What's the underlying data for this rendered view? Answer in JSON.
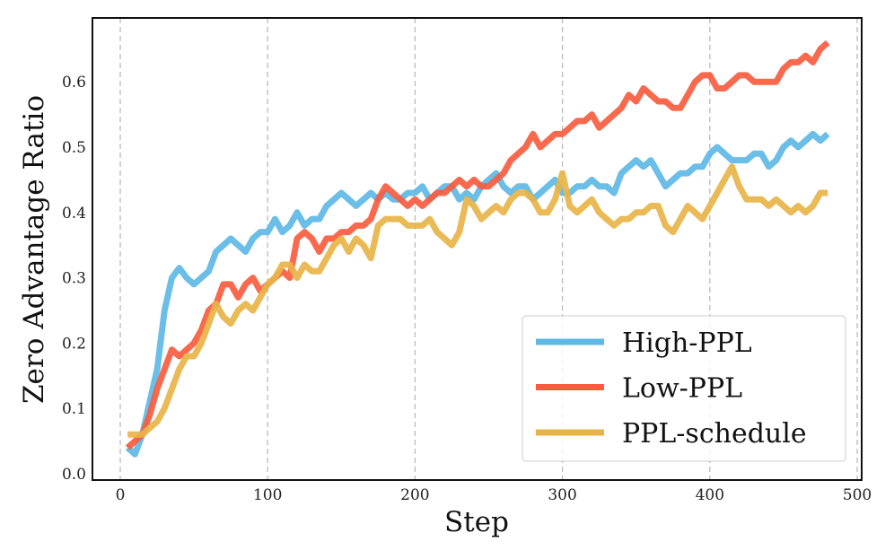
{
  "chart_data": {
    "type": "line",
    "title": "",
    "xlabel": "Step",
    "ylabel": "Zero Advantage Ratio",
    "xlim": [
      -20,
      505
    ],
    "ylim": [
      -0.01,
      0.69
    ],
    "xticks": [
      0,
      100,
      200,
      300,
      400,
      500
    ],
    "xtick_labels": [
      "0",
      "100",
      "200",
      "300",
      "400",
      "500"
    ],
    "yticks": [
      0.0,
      0.1,
      0.2,
      0.3,
      0.4,
      0.5,
      0.6
    ],
    "ytick_labels": [
      "0.0",
      "0.1",
      "0.2",
      "0.3",
      "0.4",
      "0.5",
      "0.6"
    ],
    "grid": "vertical dashed",
    "legend_position": "bottom-right",
    "x": [
      5,
      10,
      15,
      20,
      25,
      30,
      35,
      40,
      45,
      50,
      55,
      60,
      65,
      70,
      75,
      80,
      85,
      90,
      95,
      100,
      105,
      110,
      115,
      120,
      125,
      130,
      135,
      140,
      145,
      150,
      155,
      160,
      165,
      170,
      175,
      180,
      185,
      190,
      195,
      200,
      205,
      210,
      215,
      220,
      225,
      230,
      235,
      240,
      245,
      250,
      255,
      260,
      265,
      270,
      275,
      280,
      285,
      290,
      295,
      300,
      305,
      310,
      315,
      320,
      325,
      330,
      335,
      340,
      345,
      350,
      355,
      360,
      365,
      370,
      375,
      380,
      385,
      390,
      395,
      400,
      405,
      410,
      415,
      420,
      425,
      430,
      435,
      440,
      445,
      450,
      455,
      460,
      465,
      470,
      475,
      480
    ],
    "series": [
      {
        "name": "High-PPL",
        "color": "#5DB8E6",
        "values": [
          0.04,
          0.03,
          0.06,
          0.11,
          0.16,
          0.25,
          0.3,
          0.315,
          0.3,
          0.29,
          0.3,
          0.31,
          0.34,
          0.35,
          0.36,
          0.35,
          0.34,
          0.36,
          0.37,
          0.37,
          0.39,
          0.37,
          0.38,
          0.4,
          0.38,
          0.39,
          0.39,
          0.41,
          0.42,
          0.43,
          0.42,
          0.41,
          0.42,
          0.43,
          0.42,
          0.43,
          0.42,
          0.42,
          0.43,
          0.43,
          0.44,
          0.42,
          0.43,
          0.44,
          0.44,
          0.42,
          0.43,
          0.42,
          0.44,
          0.45,
          0.46,
          0.44,
          0.43,
          0.44,
          0.44,
          0.42,
          0.43,
          0.44,
          0.45,
          0.43,
          0.43,
          0.44,
          0.44,
          0.45,
          0.44,
          0.44,
          0.43,
          0.46,
          0.47,
          0.48,
          0.47,
          0.48,
          0.46,
          0.44,
          0.45,
          0.46,
          0.46,
          0.47,
          0.47,
          0.49,
          0.5,
          0.49,
          0.48,
          0.48,
          0.48,
          0.49,
          0.49,
          0.47,
          0.48,
          0.5,
          0.51,
          0.5,
          0.51,
          0.52,
          0.51,
          0.52
        ]
      },
      {
        "name": "Low-PPL",
        "color": "#F95C3E",
        "values": [
          0.04,
          0.05,
          0.06,
          0.09,
          0.13,
          0.16,
          0.19,
          0.18,
          0.19,
          0.2,
          0.22,
          0.25,
          0.26,
          0.29,
          0.29,
          0.27,
          0.29,
          0.3,
          0.28,
          0.29,
          0.3,
          0.31,
          0.3,
          0.36,
          0.37,
          0.36,
          0.34,
          0.36,
          0.36,
          0.37,
          0.37,
          0.38,
          0.38,
          0.39,
          0.42,
          0.44,
          0.43,
          0.42,
          0.41,
          0.42,
          0.41,
          0.42,
          0.43,
          0.43,
          0.44,
          0.45,
          0.44,
          0.45,
          0.44,
          0.44,
          0.45,
          0.46,
          0.48,
          0.49,
          0.5,
          0.52,
          0.5,
          0.51,
          0.52,
          0.52,
          0.53,
          0.54,
          0.54,
          0.55,
          0.53,
          0.54,
          0.55,
          0.56,
          0.58,
          0.57,
          0.59,
          0.58,
          0.57,
          0.57,
          0.56,
          0.56,
          0.58,
          0.6,
          0.61,
          0.61,
          0.59,
          0.59,
          0.6,
          0.61,
          0.61,
          0.6,
          0.6,
          0.6,
          0.6,
          0.62,
          0.63,
          0.63,
          0.64,
          0.63,
          0.65,
          0.66
        ]
      },
      {
        "name": "PPL-schedule",
        "color": "#E8B448",
        "values": [
          0.06,
          0.06,
          0.06,
          0.07,
          0.08,
          0.1,
          0.13,
          0.16,
          0.18,
          0.18,
          0.2,
          0.23,
          0.26,
          0.24,
          0.23,
          0.25,
          0.26,
          0.25,
          0.27,
          0.29,
          0.3,
          0.32,
          0.32,
          0.3,
          0.32,
          0.31,
          0.31,
          0.33,
          0.35,
          0.36,
          0.34,
          0.36,
          0.35,
          0.33,
          0.38,
          0.39,
          0.39,
          0.39,
          0.38,
          0.38,
          0.38,
          0.39,
          0.37,
          0.36,
          0.35,
          0.37,
          0.42,
          0.41,
          0.39,
          0.4,
          0.41,
          0.4,
          0.42,
          0.43,
          0.43,
          0.42,
          0.4,
          0.4,
          0.42,
          0.46,
          0.41,
          0.4,
          0.41,
          0.42,
          0.4,
          0.39,
          0.38,
          0.39,
          0.39,
          0.4,
          0.4,
          0.41,
          0.41,
          0.38,
          0.37,
          0.39,
          0.41,
          0.4,
          0.39,
          0.41,
          0.43,
          0.45,
          0.47,
          0.44,
          0.42,
          0.42,
          0.42,
          0.41,
          0.42,
          0.41,
          0.4,
          0.41,
          0.4,
          0.41,
          0.43,
          0.43
        ]
      }
    ]
  }
}
